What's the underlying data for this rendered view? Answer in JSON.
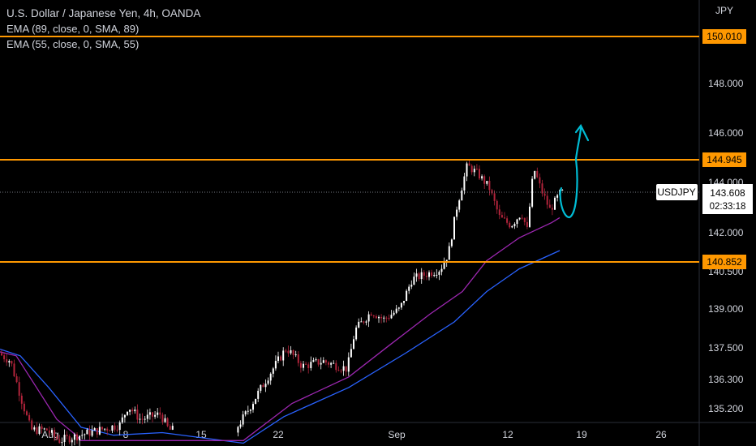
{
  "header": {
    "title": "U.S. Dollar / Japanese Yen, 4h, OANDA",
    "indicators": [
      "EMA (89, close, 0, SMA, 89)",
      "EMA (55, close, 0, SMA, 55)"
    ],
    "currency": "JPY"
  },
  "chart_data": {
    "type": "candlestick",
    "symbol": "USDJPY",
    "last_price": "143.608",
    "countdown": "02:33:18",
    "y_ticks": [
      "148.000",
      "146.000",
      "144.000",
      "142.000",
      "140.500",
      "139.000",
      "137.500",
      "136.300",
      "135.200"
    ],
    "x_ticks": [
      "Aug",
      "8",
      "15",
      "22",
      "Sep",
      "12",
      "19",
      "26"
    ],
    "horizontal_levels": [
      "150.010",
      "144.945",
      "140.852"
    ],
    "colors": {
      "background": "#000000",
      "level_line": "#ff9800",
      "level_label_bg": "#ff9800",
      "candle_up": "#ffffff",
      "candle_down": "#b2243b",
      "ema_89": "#2962ff",
      "ema_55": "#9c27b0",
      "projection": "#00bcd4",
      "text": "#d1d4dc"
    }
  }
}
